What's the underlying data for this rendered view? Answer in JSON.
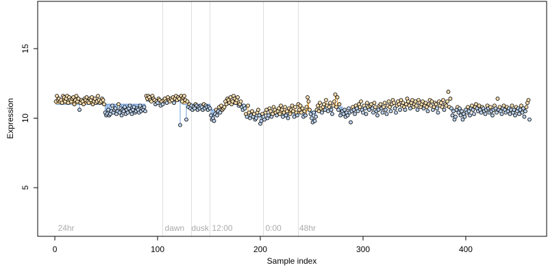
{
  "chart_data": {
    "type": "scatter",
    "xlabel": "Sample index",
    "ylabel": "Expression",
    "xlim": [
      -16.7,
      478.7
    ],
    "ylim": [
      1.5,
      18.4
    ],
    "xticks": [
      0,
      100,
      200,
      300,
      400
    ],
    "yticks": [
      5,
      10,
      15
    ],
    "vlines": [
      105,
      133,
      151,
      203,
      237
    ],
    "annotations": [
      {
        "text": "24hr",
        "x": 3
      },
      {
        "text": "dawn",
        "x": 107
      },
      {
        "text": "dusk",
        "x": 133
      },
      {
        "text": "12:00",
        "x": 153
      },
      {
        "text": "0:00",
        "x": 205
      },
      {
        "text": "48hr",
        "x": 238
      }
    ],
    "segments": [
      {
        "start": 1,
        "end": 48,
        "level": 11.0
      },
      {
        "start": 49,
        "end": 88,
        "level": 11.0
      },
      {
        "start": 89,
        "end": 123,
        "level": 11.2
      },
      {
        "start": 124,
        "end": 151,
        "level": 11.0
      },
      {
        "start": 152,
        "end": 165,
        "level": 10.6
      },
      {
        "start": 166,
        "end": 185,
        "level": 11.0
      },
      {
        "start": 186,
        "end": 245,
        "level": 10.3
      },
      {
        "start": 246,
        "end": 262,
        "level": 10.5
      },
      {
        "start": 263,
        "end": 280,
        "level": 10.8
      }
    ],
    "up_color": "#f0a020",
    "down_color": "#6f9fd8",
    "up_fill": "#f5dcae",
    "down_fill": "#bcd2ec",
    "step_color": "#7aa6dc",
    "values": [
      11.2,
      11.6,
      11.3,
      11.4,
      11.2,
      11.3,
      11.1,
      11.6,
      11.5,
      11.2,
      11.4,
      11.6,
      11.1,
      11.5,
      11.3,
      11.2,
      11.4,
      11.5,
      11.0,
      11.3,
      11.6,
      11.2,
      11.4,
      10.6,
      11.1,
      11.3,
      11.2,
      11.0,
      11.4,
      11.3,
      11.5,
      11.2,
      11.1,
      11.4,
      11.3,
      11.5,
      11.0,
      11.2,
      11.4,
      11.1,
      11.2,
      11.6,
      11.3,
      11.1,
      11.2,
      11.4,
      11.3,
      11.0,
      10.4,
      10.2,
      10.3,
      10.6,
      10.2,
      10.3,
      10.5,
      10.9,
      10.4,
      10.6,
      10.7,
      10.3,
      10.5,
      11.0,
      10.4,
      10.7,
      10.2,
      10.6,
      10.5,
      10.8,
      10.3,
      10.6,
      10.4,
      10.7,
      10.9,
      10.5,
      10.3,
      10.6,
      10.8,
      10.4,
      10.5,
      10.7,
      10.6,
      10.4,
      10.9,
      10.5,
      10.7,
      10.6,
      10.8,
      10.5,
      11.6,
      11.4,
      11.6,
      11.5,
      11.3,
      11.2,
      11.6,
      11.4,
      11.3,
      11.0,
      11.2,
      11.1,
      11.4,
      11.3,
      10.9,
      11.2,
      11.0,
      11.3,
      11.4,
      11.2,
      11.1,
      11.5,
      11.3,
      11.2,
      11.4,
      11.3,
      11.5,
      11.1,
      11.4,
      11.6,
      11.3,
      11.5,
      11.4,
      9.5,
      11.6,
      11.2,
      11.5,
      11.6,
      11.3,
      9.9,
      11.2,
      10.8,
      11.0,
      10.7,
      10.9,
      10.6,
      10.8,
      10.7,
      11.0,
      10.9,
      10.6,
      10.8,
      10.7,
      10.9,
      10.8,
      10.6,
      11.0,
      10.7,
      10.9,
      10.8,
      10.6,
      10.8,
      10.7,
      10.2,
      9.9,
      10.0,
      9.8,
      10.3,
      10.6,
      10.2,
      10.5,
      10.8,
      10.4,
      10.9,
      10.6,
      10.7,
      10.8,
      11.2,
      11.0,
      11.4,
      11.3,
      11.1,
      11.5,
      11.0,
      11.2,
      11.6,
      11.4,
      11.1,
      11.3,
      11.5,
      10.9,
      11.0,
      11.2,
      10.8,
      10.6,
      10.9,
      10.7,
      10.3,
      10.1,
      10.9,
      10.4,
      10.0,
      10.2,
      10.5,
      10.1,
      10.3,
      9.9,
      10.0,
      10.4,
      10.6,
      10.2,
      9.6,
      9.8,
      10.3,
      10.1,
      9.9,
      10.4,
      10.6,
      10.0,
      10.2,
      10.7,
      10.5,
      10.1,
      10.3,
      10.8,
      10.6,
      10.4,
      10.2,
      10.5,
      10.7,
      10.3,
      10.9,
      10.6,
      10.1,
      10.4,
      10.8,
      10.2,
      10.5,
      10.0,
      10.7,
      10.3,
      10.6,
      10.9,
      10.5,
      10.1,
      10.8,
      10.4,
      10.2,
      11.0,
      10.6,
      10.9,
      10.4,
      10.7,
      10.1,
      10.5,
      10.2,
      10.8,
      11.5,
      11.2,
      10.6,
      10.3,
      10.0,
      9.7,
      10.4,
      9.8,
      10.1,
      10.6,
      10.9,
      10.5,
      11.1,
      10.7,
      10.4,
      10.8,
      11.0,
      10.6,
      11.3,
      10.9,
      10.5,
      10.8,
      11.1,
      10.6,
      10.3,
      10.9,
      11.2,
      11.7,
      10.8,
      11.5,
      10.6,
      11.0,
      10.2,
      10.4,
      10.5,
      10.3,
      10.6,
      10.1,
      10.4,
      10.2,
      10.7,
      10.4,
      9.7,
      10.5,
      10.8,
      10.6,
      10.3,
      10.9,
      10.7,
      10.5,
      11.0,
      10.8,
      11.2,
      10.6,
      10.4,
      10.9,
      10.7,
      10.3,
      11.1,
      10.8,
      10.6,
      10.9,
      11.0,
      10.7,
      10.4,
      11.1,
      10.8,
      10.5,
      10.2,
      10.6,
      10.9,
      11.0,
      10.7,
      10.4,
      10.8,
      11.1,
      10.6,
      10.3,
      10.9,
      11.2,
      10.8,
      10.5,
      11.0,
      11.3,
      11.1,
      10.7,
      10.4,
      10.9,
      11.2,
      11.0,
      10.6,
      11.3,
      10.9,
      11.1,
      10.8,
      10.6,
      11.0,
      11.4,
      11.2,
      10.9,
      10.7,
      11.1,
      11.3,
      10.8,
      11.0,
      11.2,
      10.9,
      10.6,
      11.3,
      11.1,
      10.8,
      11.0,
      11.2,
      10.7,
      10.9,
      11.1,
      10.8,
      10.5,
      11.0,
      11.3,
      10.9,
      11.2,
      10.6,
      10.8,
      11.1,
      11.0,
      10.7,
      10.4,
      11.2,
      10.9,
      11.1,
      10.8,
      11.3,
      10.6,
      11.0,
      10.9,
      11.2,
      11.9,
      10.8,
      11.4,
      10.7,
      10.2,
      10.5,
      9.9,
      10.1,
      10.6,
      10.8,
      10.4,
      10.7,
      10.2,
      10.5,
      9.9,
      10.3,
      10.1,
      10.6,
      10.4,
      10.8,
      10.5,
      10.2,
      10.7,
      10.9,
      10.6,
      10.3,
      10.8,
      11.0,
      10.7,
      10.5,
      10.9,
      10.6,
      10.4,
      10.8,
      10.7,
      10.5,
      10.3,
      10.6,
      10.9,
      10.7,
      10.4,
      10.8,
      10.5,
      10.2,
      10.6,
      10.9,
      10.7,
      10.4,
      11.4,
      10.6,
      10.8,
      10.5,
      10.3,
      10.7,
      10.9,
      10.6,
      10.4,
      10.8,
      10.5,
      10.7,
      10.3,
      10.6,
      10.9,
      10.4,
      10.6,
      10.2,
      10.8,
      10.5,
      10.7,
      10.3,
      10.6,
      10.9,
      10.4,
      10.7,
      10.1,
      10.5,
      10.8,
      11.1,
      11.3,
      9.9
    ]
  }
}
